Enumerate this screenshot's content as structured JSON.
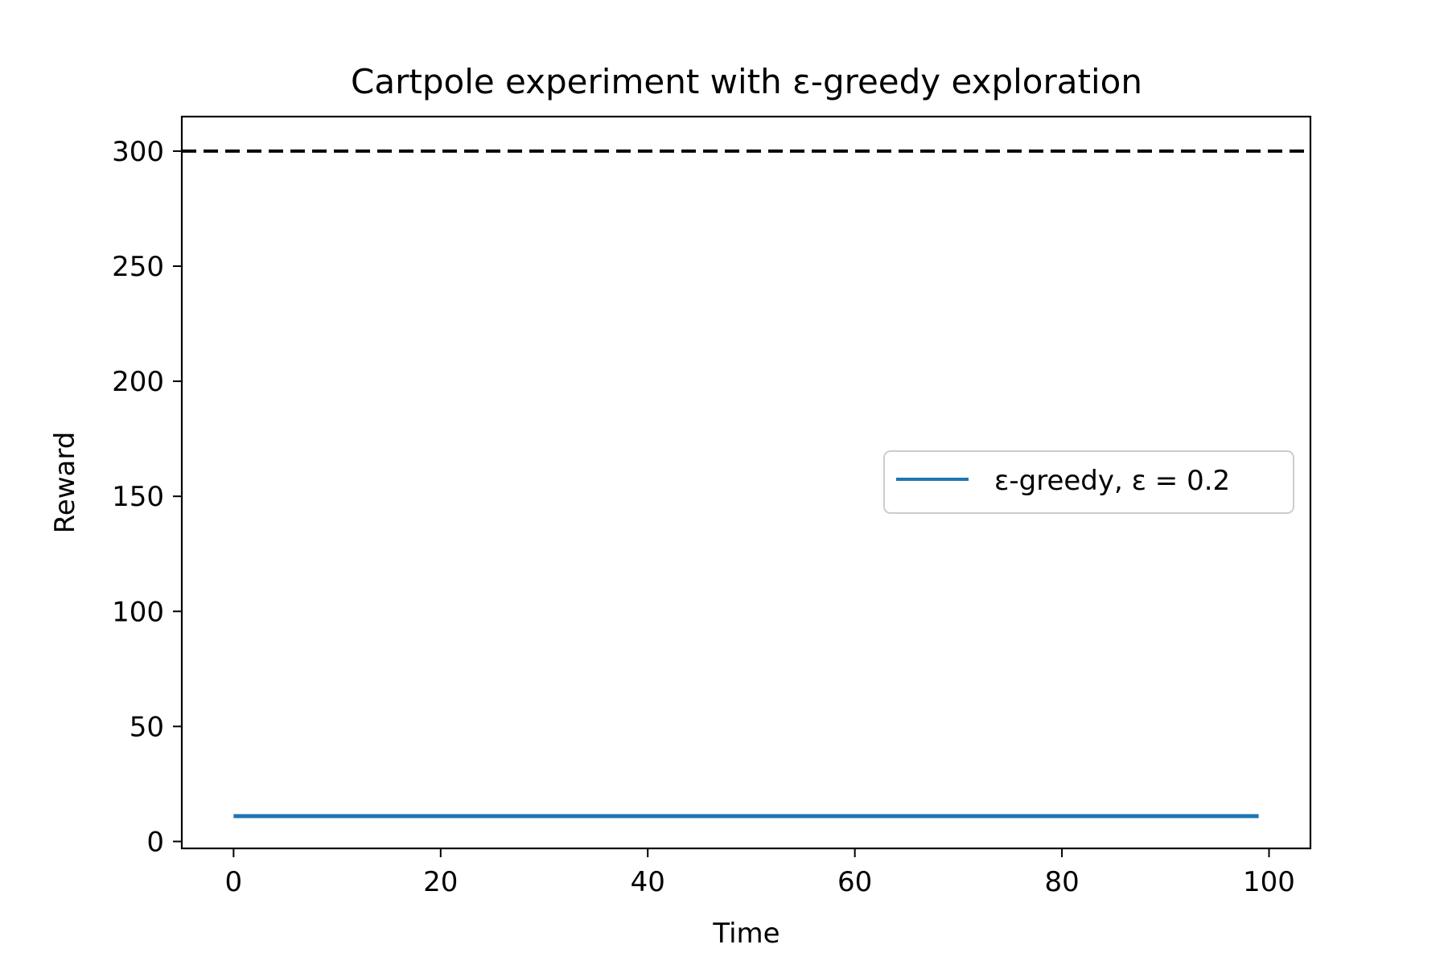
{
  "chart_data": {
    "type": "line",
    "title": "Cartpole experiment with ε-greedy exploration",
    "xlabel": "Time",
    "ylabel": "Reward",
    "xlim": [
      -5,
      104
    ],
    "ylim": [
      -3,
      315
    ],
    "xticks": [
      0,
      20,
      40,
      60,
      80,
      100
    ],
    "yticks": [
      0,
      50,
      100,
      150,
      200,
      250,
      300
    ],
    "grid": false,
    "legend_position": "center-right",
    "series": [
      {
        "name": "ε-greedy, ε = 0.2",
        "color": "#1f77b4",
        "x": [
          0,
          99
        ],
        "y": [
          11,
          11
        ]
      }
    ],
    "reference_lines": [
      {
        "orientation": "horizontal",
        "y": 300,
        "style": "dashed",
        "color": "#000000"
      }
    ]
  }
}
